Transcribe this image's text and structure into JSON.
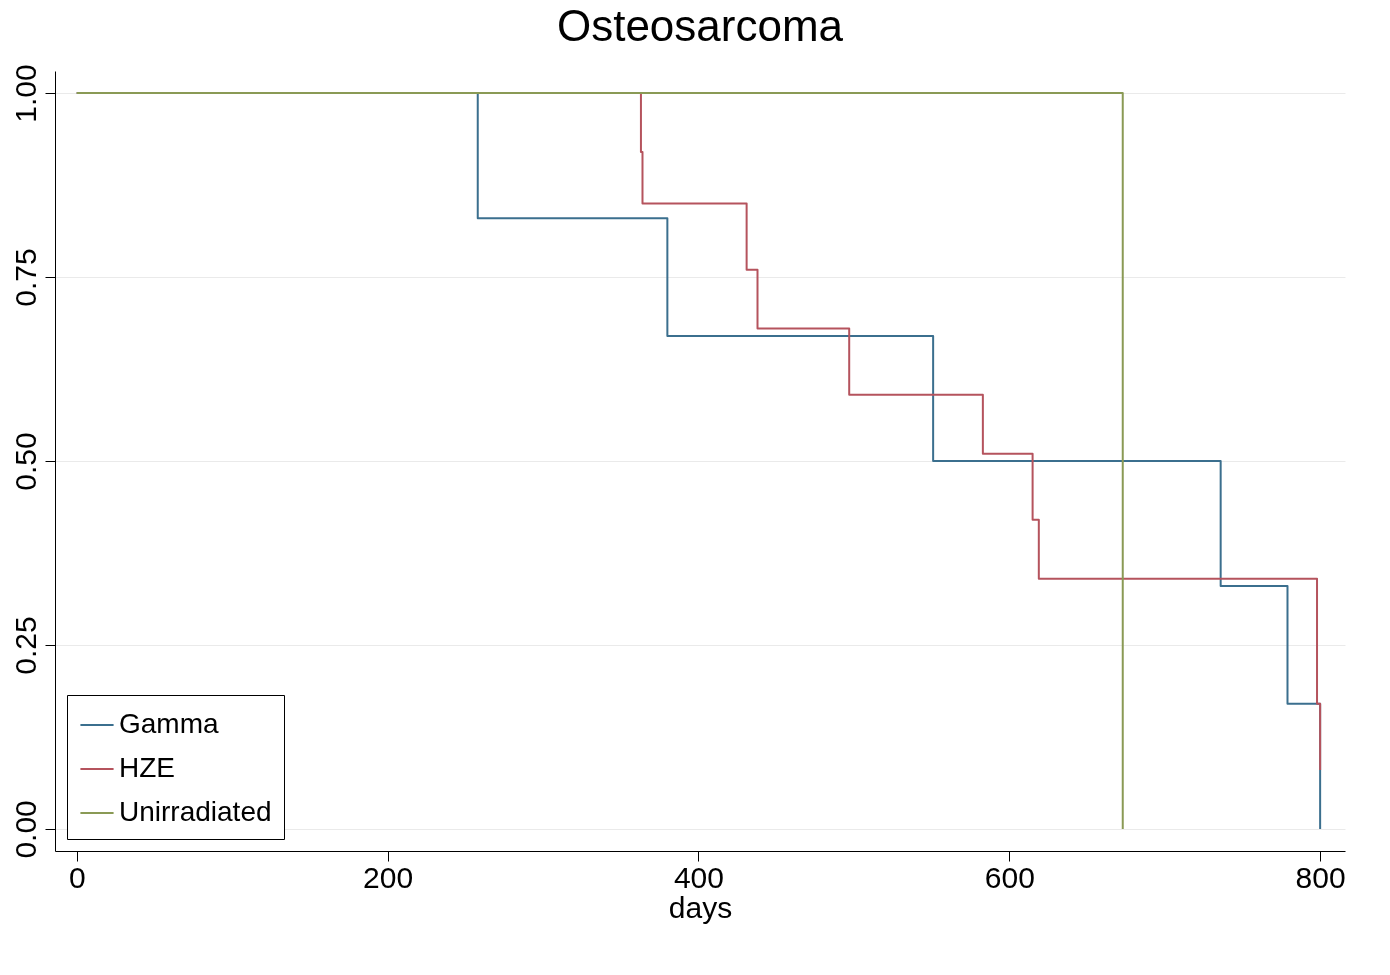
{
  "chart_data": {
    "type": "step",
    "title": "Osteosarcoma",
    "xlabel": "days",
    "series": [
      {
        "name": "Gamma",
        "color": "#3b6f8e",
        "x": [
          0,
          258,
          380,
          551,
          736,
          779,
          800
        ],
        "values": [
          1,
          0.83,
          0.67,
          0.5,
          0.33,
          0.17,
          0
        ]
      },
      {
        "name": "HZE",
        "color": "#b5535d",
        "x": [
          0,
          363,
          364,
          431,
          438,
          497,
          583,
          615,
          619,
          798,
          800
        ],
        "values": [
          1,
          0.92,
          0.85,
          0.76,
          0.68,
          0.59,
          0.51,
          0.42,
          0.34,
          0.17,
          0.08
        ]
      },
      {
        "name": "Unirradiated",
        "color": "#8a9a55",
        "x": [
          0,
          673
        ],
        "values": [
          1,
          0
        ]
      }
    ],
    "xlim": [
      -14,
      816
    ],
    "xticks": [
      0,
      200,
      400,
      600,
      800
    ],
    "ylim": [
      -0.03,
      1.03
    ],
    "yticks": [
      {
        "value": 0,
        "label": "0.00"
      },
      {
        "value": 0.25,
        "label": "0.25"
      },
      {
        "value": 0.5,
        "label": "0.50"
      },
      {
        "value": 0.75,
        "label": "0.75"
      },
      {
        "value": 1,
        "label": "1.00"
      }
    ],
    "grid": "y",
    "legend": "bottom left"
  }
}
